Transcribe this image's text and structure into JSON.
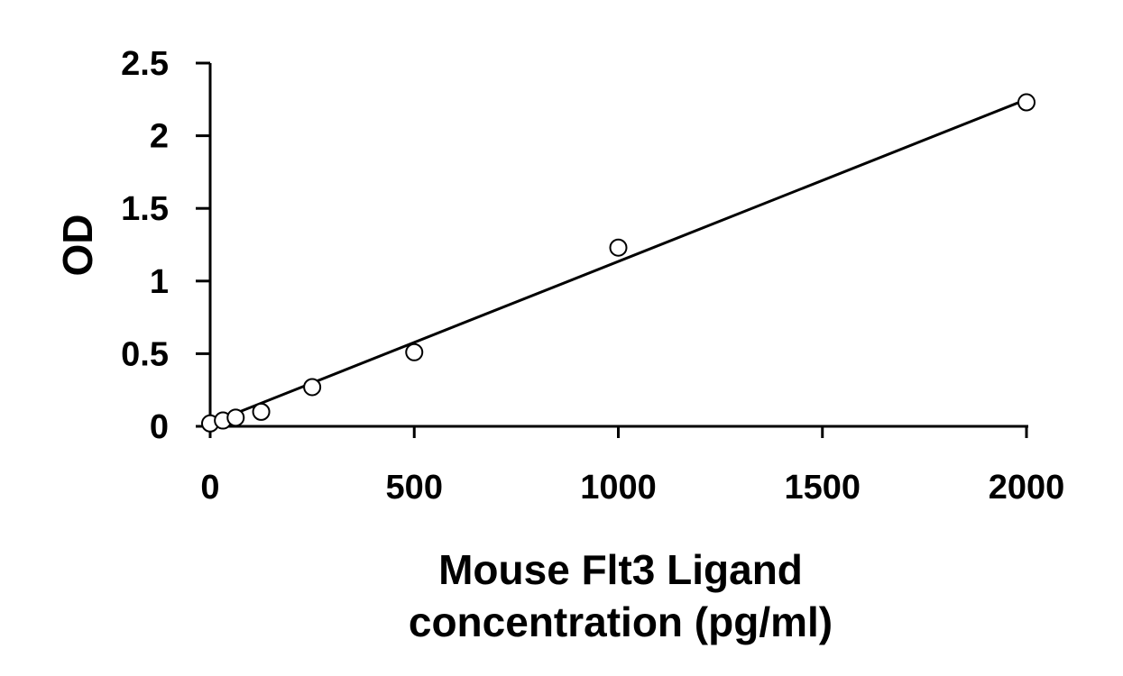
{
  "chart_data": {
    "type": "scatter",
    "xlabel_lines": [
      "Mouse Flt3 Ligand",
      "concentration (pg/ml)"
    ],
    "ylabel": "OD",
    "xlim": [
      0,
      2000
    ],
    "ylim": [
      0,
      2.5
    ],
    "x_ticks": [
      0,
      500,
      1000,
      1500,
      2000
    ],
    "x_tick_labels": [
      "0",
      "500",
      "1000",
      "1500",
      "2000"
    ],
    "y_ticks": [
      0,
      0.5,
      1,
      1.5,
      2,
      2.5
    ],
    "y_tick_labels": [
      "0",
      "0.5",
      "1",
      "1.5",
      "2",
      "2.5"
    ],
    "grid": false,
    "legend": "none",
    "series": [
      {
        "points": [
          {
            "x": 0,
            "y": 0.02
          },
          {
            "x": 31.25,
            "y": 0.04
          },
          {
            "x": 62.5,
            "y": 0.06
          },
          {
            "x": 125,
            "y": 0.1
          },
          {
            "x": 250,
            "y": 0.27
          },
          {
            "x": 500,
            "y": 0.51
          },
          {
            "x": 1000,
            "y": 1.23
          },
          {
            "x": 2000,
            "y": 2.23
          }
        ],
        "marker": "open-circle",
        "color": "#000000"
      }
    ],
    "trendline": {
      "from": {
        "x": 0,
        "y": 0.02
      },
      "to": {
        "x": 2000,
        "y": 2.25
      },
      "color": "#000000"
    }
  }
}
